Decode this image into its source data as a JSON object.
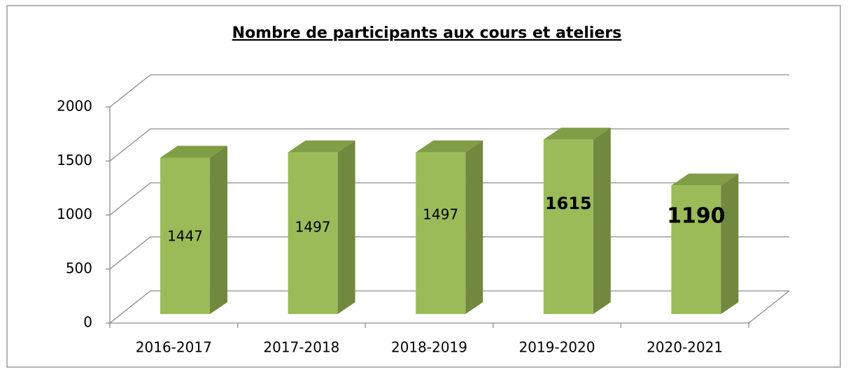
{
  "chart_data": {
    "type": "bar3d",
    "title": "Nombre de participants aux cours et ateliers",
    "categories": [
      "2016-2017",
      "2017-2018",
      "2018-2019",
      "2019-2020",
      "2020-2021"
    ],
    "values": [
      1447,
      1497,
      1497,
      1615,
      1190
    ],
    "color": "#9bbb59",
    "ylim": [
      0,
      2000
    ],
    "yticks": [
      0,
      500,
      1000,
      1500,
      2000
    ],
    "grid": true
  }
}
